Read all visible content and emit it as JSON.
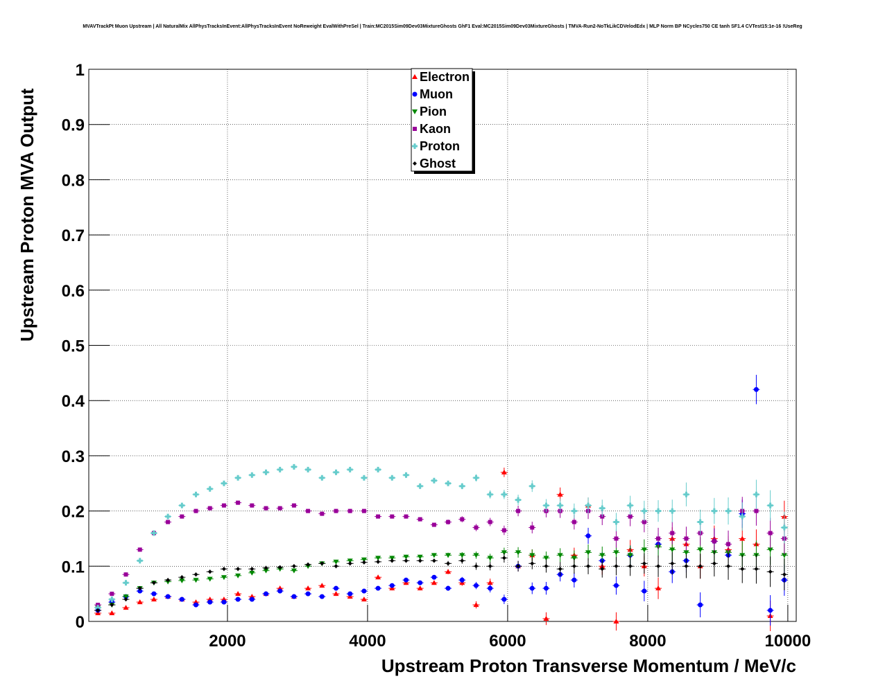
{
  "chart_data": {
    "type": "scatter",
    "title": "MVAVTrackPt Muon Upstream | All NaturalMix AllPhysTracksInEvent:AllPhysTracksInEvent NoReweight EvalWithPreSel | Train:MC2015Sim09Dev03MixtureGhosts GhF1 Eval:MC2015Sim09Dev03MixtureGhosts | TMVA-Run2-NoTkLikCDVelodEdx | MLP Norm BP NCycles750 CE tanh SF1.4 CVTest15:1e-16 !UseReg",
    "xlabel": "Upstream Proton Transverse Momentum / MeV/c",
    "ylabel": "Upstream Proton MVA Output",
    "xlim": [
      20,
      10120
    ],
    "ylim": [
      0,
      1
    ],
    "xticks": [
      "2000",
      "4000",
      "6000",
      "8000",
      "10000"
    ],
    "xtick_values": [
      2000,
      4000,
      6000,
      8000,
      10000
    ],
    "yticks": [
      "0",
      "0.1",
      "0.2",
      "0.3",
      "0.4",
      "0.5",
      "0.6",
      "0.7",
      "0.8",
      "0.9",
      "1"
    ],
    "grid": true,
    "legend_position": "top-center",
    "x": [
      150,
      350,
      550,
      750,
      950,
      1150,
      1350,
      1550,
      1750,
      1950,
      2150,
      2350,
      2550,
      2750,
      2950,
      3150,
      3350,
      3550,
      3750,
      3950,
      4150,
      4350,
      4550,
      4750,
      4950,
      5150,
      5350,
      5550,
      5750,
      5950,
      6150,
      6350,
      6550,
      6750,
      6950,
      7150,
      7350,
      7550,
      7750,
      7950,
      8150,
      8350,
      8550,
      8750,
      8950,
      9150,
      9350,
      9550,
      9750,
      9950
    ],
    "series": [
      {
        "name": "Electron",
        "color": "#ff0000",
        "marker": "triangle-up",
        "values": [
          0.015,
          0.015,
          0.025,
          0.035,
          0.04,
          0.045,
          0.04,
          0.035,
          0.04,
          0.04,
          0.05,
          0.045,
          0.05,
          0.06,
          0.045,
          0.06,
          0.065,
          0.05,
          0.045,
          0.04,
          0.08,
          0.06,
          0.07,
          0.06,
          0.07,
          0.09,
          0.07,
          0.03,
          0.07,
          0.27,
          0.1,
          0.12,
          0.005,
          0.23,
          0.12,
          0.21,
          0.1,
          0.0,
          0.13,
          0.1,
          0.06,
          0.15,
          0.14,
          0.1,
          0.15,
          0.13,
          0.15,
          0.14,
          0.01,
          0.19
        ]
      },
      {
        "name": "Muon",
        "color": "#0000ff",
        "marker": "circle",
        "values": [
          0.02,
          0.035,
          0.045,
          0.055,
          0.05,
          0.045,
          0.04,
          0.03,
          0.035,
          0.035,
          0.04,
          0.04,
          0.05,
          0.055,
          0.045,
          0.05,
          0.045,
          0.06,
          0.05,
          0.055,
          0.06,
          0.065,
          0.075,
          0.07,
          0.08,
          0.06,
          0.075,
          0.065,
          0.06,
          0.04,
          0.1,
          0.06,
          0.06,
          0.085,
          0.075,
          0.155,
          0.11,
          0.065,
          0.12,
          0.055,
          0.14,
          0.09,
          0.11,
          0.03,
          0.145,
          0.12,
          0.195,
          0.42,
          0.02,
          0.075
        ]
      },
      {
        "name": "Pion",
        "color": "#008800",
        "marker": "triangle-down",
        "values": [
          0.025,
          0.03,
          0.045,
          0.06,
          0.07,
          0.072,
          0.074,
          0.075,
          0.077,
          0.08,
          0.083,
          0.088,
          0.092,
          0.095,
          0.092,
          0.1,
          0.105,
          0.108,
          0.11,
          0.112,
          0.115,
          0.115,
          0.117,
          0.117,
          0.12,
          0.12,
          0.12,
          0.12,
          0.115,
          0.125,
          0.125,
          0.12,
          0.115,
          0.12,
          0.115,
          0.125,
          0.12,
          0.125,
          0.12,
          0.13,
          0.135,
          0.13,
          0.125,
          0.13,
          0.125,
          0.125,
          0.12,
          0.12,
          0.13,
          0.12
        ]
      },
      {
        "name": "Kaon",
        "color": "#990099",
        "marker": "square",
        "values": [
          0.03,
          0.05,
          0.085,
          0.13,
          0.16,
          0.18,
          0.19,
          0.2,
          0.205,
          0.21,
          0.215,
          0.21,
          0.205,
          0.205,
          0.21,
          0.2,
          0.195,
          0.2,
          0.2,
          0.2,
          0.19,
          0.19,
          0.19,
          0.185,
          0.175,
          0.18,
          0.185,
          0.17,
          0.18,
          0.165,
          0.2,
          0.17,
          0.2,
          0.2,
          0.18,
          0.2,
          0.19,
          0.15,
          0.19,
          0.18,
          0.15,
          0.16,
          0.15,
          0.16,
          0.145,
          0.14,
          0.2,
          0.2,
          0.16,
          0.15
        ]
      },
      {
        "name": "Proton",
        "color": "#66cccc",
        "marker": "cross",
        "values": [
          0.025,
          0.04,
          0.07,
          0.11,
          0.16,
          0.19,
          0.21,
          0.23,
          0.24,
          0.25,
          0.26,
          0.265,
          0.27,
          0.275,
          0.28,
          0.275,
          0.26,
          0.27,
          0.275,
          0.26,
          0.275,
          0.26,
          0.265,
          0.245,
          0.255,
          0.25,
          0.245,
          0.26,
          0.23,
          0.23,
          0.22,
          0.245,
          0.21,
          0.21,
          0.2,
          0.21,
          0.205,
          0.18,
          0.21,
          0.2,
          0.2,
          0.2,
          0.23,
          0.18,
          0.2,
          0.2,
          0.19,
          0.23,
          0.21,
          0.17
        ]
      },
      {
        "name": "Ghost",
        "color": "#000000",
        "marker": "diamond",
        "values": [
          0.02,
          0.03,
          0.04,
          0.06,
          0.07,
          0.075,
          0.08,
          0.085,
          0.09,
          0.095,
          0.095,
          0.095,
          0.097,
          0.098,
          0.1,
          0.103,
          0.105,
          0.1,
          0.105,
          0.107,
          0.108,
          0.11,
          0.11,
          0.11,
          0.11,
          0.105,
          0.11,
          0.1,
          0.1,
          0.115,
          0.1,
          0.105,
          0.1,
          0.095,
          0.1,
          0.1,
          0.095,
          0.1,
          0.1,
          0.105,
          0.1,
          0.105,
          0.1,
          0.1,
          0.105,
          0.1,
          0.095,
          0.095,
          0.09,
          0.085
        ]
      }
    ]
  }
}
